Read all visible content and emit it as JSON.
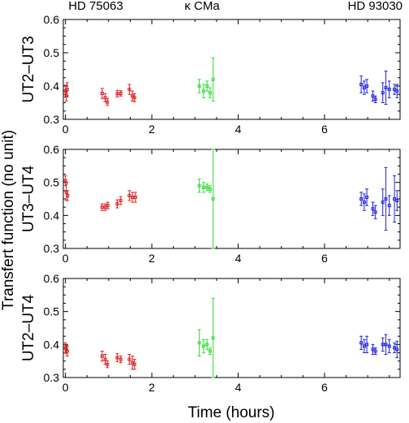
{
  "figure": {
    "ylabel": "Transfert function (no unit)",
    "xlabel": "Time (hours)",
    "star_labels": [
      "HD 75063",
      "κ CMa",
      "HD 93030"
    ]
  },
  "colors": {
    "red": "#e02020",
    "green": "#33dd33",
    "blue": "#2222dd",
    "axis": "#000000"
  },
  "chart_data": [
    {
      "type": "scatter",
      "title": "",
      "ylabel": "UT2–UT3",
      "xlabel": "",
      "xlim": [
        -0.05,
        7.75
      ],
      "ylim": [
        0.3,
        0.6
      ],
      "x_ticks": [
        0,
        2,
        4,
        6
      ],
      "y_ticks": [
        0.3,
        0.4,
        0.5,
        0.6
      ],
      "series": [
        {
          "color": "red",
          "points": [
            {
              "x": 0.0,
              "y": 0.385,
              "err": 0.018
            },
            {
              "x": 0.02,
              "y": 0.37,
              "err": 0.015
            },
            {
              "x": 0.04,
              "y": 0.39,
              "err": 0.02
            },
            {
              "x": 0.85,
              "y": 0.378,
              "err": 0.015
            },
            {
              "x": 0.92,
              "y": 0.365,
              "err": 0.012
            },
            {
              "x": 0.97,
              "y": 0.352,
              "err": 0.01
            },
            {
              "x": 1.2,
              "y": 0.377,
              "err": 0.01
            },
            {
              "x": 1.28,
              "y": 0.378,
              "err": 0.008
            },
            {
              "x": 1.48,
              "y": 0.39,
              "err": 0.015
            },
            {
              "x": 1.55,
              "y": 0.37,
              "err": 0.015
            },
            {
              "x": 1.6,
              "y": 0.365,
              "err": 0.012
            }
          ]
        },
        {
          "color": "green",
          "points": [
            {
              "x": 3.1,
              "y": 0.4,
              "err": 0.02
            },
            {
              "x": 3.2,
              "y": 0.385,
              "err": 0.02
            },
            {
              "x": 3.28,
              "y": 0.4,
              "err": 0.015
            },
            {
              "x": 3.35,
              "y": 0.38,
              "err": 0.015
            },
            {
              "x": 3.42,
              "y": 0.42,
              "err": 0.065
            }
          ]
        },
        {
          "color": "blue",
          "points": [
            {
              "x": 6.85,
              "y": 0.405,
              "err": 0.025
            },
            {
              "x": 6.92,
              "y": 0.395,
              "err": 0.02
            },
            {
              "x": 6.98,
              "y": 0.4,
              "err": 0.02
            },
            {
              "x": 7.12,
              "y": 0.37,
              "err": 0.015
            },
            {
              "x": 7.18,
              "y": 0.36,
              "err": 0.01
            },
            {
              "x": 7.35,
              "y": 0.38,
              "err": 0.03
            },
            {
              "x": 7.42,
              "y": 0.395,
              "err": 0.05
            },
            {
              "x": 7.5,
              "y": 0.39,
              "err": 0.025
            },
            {
              "x": 7.62,
              "y": 0.39,
              "err": 0.015
            },
            {
              "x": 7.68,
              "y": 0.385,
              "err": 0.02
            }
          ]
        }
      ]
    },
    {
      "type": "scatter",
      "title": "",
      "ylabel": "UT3–UT4",
      "xlabel": "",
      "xlim": [
        -0.05,
        7.75
      ],
      "ylim": [
        0.3,
        0.6
      ],
      "x_ticks": [
        0,
        2,
        4,
        6
      ],
      "y_ticks": [
        0.3,
        0.4,
        0.5,
        0.6
      ],
      "series": [
        {
          "color": "red",
          "points": [
            {
              "x": 0.0,
              "y": 0.505,
              "err": 0.015
            },
            {
              "x": 0.02,
              "y": 0.47,
              "err": 0.025
            },
            {
              "x": 0.05,
              "y": 0.46,
              "err": 0.015
            },
            {
              "x": 0.85,
              "y": 0.425,
              "err": 0.01
            },
            {
              "x": 0.92,
              "y": 0.425,
              "err": 0.01
            },
            {
              "x": 0.98,
              "y": 0.43,
              "err": 0.01
            },
            {
              "x": 1.2,
              "y": 0.435,
              "err": 0.012
            },
            {
              "x": 1.28,
              "y": 0.445,
              "err": 0.012
            },
            {
              "x": 1.48,
              "y": 0.46,
              "err": 0.015
            },
            {
              "x": 1.55,
              "y": 0.455,
              "err": 0.015
            },
            {
              "x": 1.62,
              "y": 0.455,
              "err": 0.015
            }
          ]
        },
        {
          "color": "green",
          "points": [
            {
              "x": 3.1,
              "y": 0.49,
              "err": 0.02
            },
            {
              "x": 3.2,
              "y": 0.485,
              "err": 0.015
            },
            {
              "x": 3.28,
              "y": 0.485,
              "err": 0.01
            },
            {
              "x": 3.35,
              "y": 0.48,
              "err": 0.01
            },
            {
              "x": 3.42,
              "y": 0.45,
              "err": 0.15
            }
          ]
        },
        {
          "color": "blue",
          "points": [
            {
              "x": 6.85,
              "y": 0.45,
              "err": 0.02
            },
            {
              "x": 6.92,
              "y": 0.44,
              "err": 0.025
            },
            {
              "x": 6.98,
              "y": 0.455,
              "err": 0.025
            },
            {
              "x": 7.12,
              "y": 0.42,
              "err": 0.02
            },
            {
              "x": 7.18,
              "y": 0.41,
              "err": 0.02
            },
            {
              "x": 7.35,
              "y": 0.44,
              "err": 0.04
            },
            {
              "x": 7.42,
              "y": 0.45,
              "err": 0.095
            },
            {
              "x": 7.5,
              "y": 0.43,
              "err": 0.03
            },
            {
              "x": 7.62,
              "y": 0.45,
              "err": 0.07
            },
            {
              "x": 7.68,
              "y": 0.445,
              "err": 0.03
            }
          ]
        }
      ]
    },
    {
      "type": "scatter",
      "title": "",
      "ylabel": "UT2–UT4",
      "xlabel": "Time (hours)",
      "xlim": [
        -0.05,
        7.75
      ],
      "ylim": [
        0.3,
        0.6
      ],
      "x_ticks": [
        0,
        2,
        4,
        6
      ],
      "y_ticks": [
        0.3,
        0.4,
        0.5,
        0.6
      ],
      "series": [
        {
          "color": "red",
          "points": [
            {
              "x": 0.0,
              "y": 0.39,
              "err": 0.015
            },
            {
              "x": 0.02,
              "y": 0.385,
              "err": 0.012
            },
            {
              "x": 0.04,
              "y": 0.38,
              "err": 0.015
            },
            {
              "x": 0.85,
              "y": 0.365,
              "err": 0.015
            },
            {
              "x": 0.92,
              "y": 0.355,
              "err": 0.015
            },
            {
              "x": 0.97,
              "y": 0.34,
              "err": 0.01
            },
            {
              "x": 1.2,
              "y": 0.36,
              "err": 0.012
            },
            {
              "x": 1.28,
              "y": 0.355,
              "err": 0.01
            },
            {
              "x": 1.48,
              "y": 0.355,
              "err": 0.015
            },
            {
              "x": 1.55,
              "y": 0.345,
              "err": 0.02
            },
            {
              "x": 1.6,
              "y": 0.34,
              "err": 0.015
            }
          ]
        },
        {
          "color": "green",
          "points": [
            {
              "x": 3.1,
              "y": 0.405,
              "err": 0.04
            },
            {
              "x": 3.2,
              "y": 0.395,
              "err": 0.02
            },
            {
              "x": 3.28,
              "y": 0.4,
              "err": 0.015
            },
            {
              "x": 3.35,
              "y": 0.38,
              "err": 0.01
            },
            {
              "x": 3.42,
              "y": 0.42,
              "err": 0.12
            }
          ]
        },
        {
          "color": "blue",
          "points": [
            {
              "x": 6.85,
              "y": 0.405,
              "err": 0.02
            },
            {
              "x": 6.92,
              "y": 0.395,
              "err": 0.02
            },
            {
              "x": 6.98,
              "y": 0.4,
              "err": 0.025
            },
            {
              "x": 7.12,
              "y": 0.385,
              "err": 0.015
            },
            {
              "x": 7.18,
              "y": 0.38,
              "err": 0.01
            },
            {
              "x": 7.35,
              "y": 0.4,
              "err": 0.02
            },
            {
              "x": 7.42,
              "y": 0.4,
              "err": 0.03
            },
            {
              "x": 7.5,
              "y": 0.395,
              "err": 0.02
            },
            {
              "x": 7.62,
              "y": 0.39,
              "err": 0.015
            },
            {
              "x": 7.68,
              "y": 0.385,
              "err": 0.025
            }
          ]
        }
      ]
    }
  ]
}
